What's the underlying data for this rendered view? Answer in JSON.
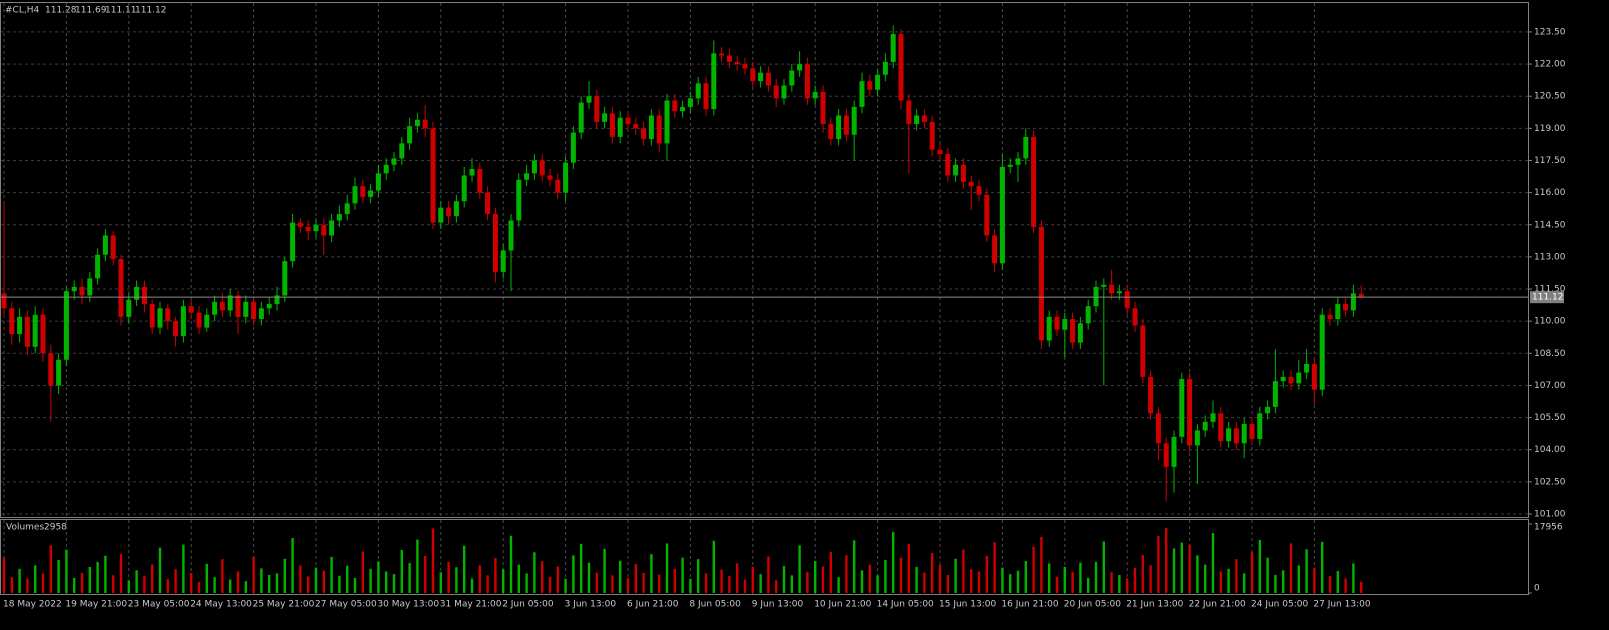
{
  "chart_data": {
    "type": "candlestick",
    "title": "#CL,H4",
    "volume_label": "Volumes",
    "up_color": "#00b400",
    "down_color": "#d00000",
    "grid": true,
    "categories": [
      "18 May 2022",
      null,
      null,
      null,
      null,
      null,
      null,
      null,
      "19 May 21:00",
      null,
      null,
      null,
      null,
      null,
      null,
      null,
      "23 May 05:00",
      null,
      null,
      null,
      null,
      null,
      null,
      null,
      "24 May 13:00",
      null,
      null,
      null,
      null,
      null,
      null,
      null,
      "25 May 21:00",
      null,
      null,
      null,
      null,
      null,
      null,
      null,
      "27 May 05:00",
      null,
      null,
      null,
      null,
      null,
      null,
      null,
      "30 May 13:00",
      null,
      null,
      null,
      null,
      null,
      null,
      null,
      "31 May 21:00",
      null,
      null,
      null,
      null,
      null,
      null,
      null,
      "2 Jun 05:00",
      null,
      null,
      null,
      null,
      null,
      null,
      null,
      "3 Jun 13:00",
      null,
      null,
      null,
      null,
      null,
      null,
      null,
      "6 Jun 21:00",
      null,
      null,
      null,
      null,
      null,
      null,
      null,
      "8 Jun 05:00",
      null,
      null,
      null,
      null,
      null,
      null,
      null,
      "9 Jun 13:00",
      null,
      null,
      null,
      null,
      null,
      null,
      null,
      "10 Jun 21:00",
      null,
      null,
      null,
      null,
      null,
      null,
      null,
      "14 Jun 05:00",
      null,
      null,
      null,
      null,
      null,
      null,
      null,
      "15 Jun 13:00",
      null,
      null,
      null,
      null,
      null,
      null,
      null,
      "16 Jun 21:00",
      null,
      null,
      null,
      null,
      null,
      null,
      null,
      "20 Jun 05:00",
      null,
      null,
      null,
      null,
      null,
      null,
      null,
      "21 Jun 13:00",
      null,
      null,
      null,
      null,
      null,
      null,
      null,
      "22 Jun 21:00",
      null,
      null,
      null,
      null,
      null,
      null,
      null,
      "24 Jun 05:00",
      null,
      null,
      null,
      null,
      null,
      null,
      null,
      "27 Jun 13:00",
      null,
      null,
      null,
      null,
      null,
      null
    ],
    "open": [
      111.3,
      110.6,
      109.4,
      110.2,
      108.8,
      110.3,
      108.5,
      107.0,
      108.2,
      111.4,
      111.6,
      111.2,
      112.0,
      113.1,
      114.0,
      112.9,
      110.2,
      111.0,
      111.6,
      110.8,
      109.7,
      110.6,
      110.0,
      109.3,
      110.7,
      110.4,
      109.7,
      110.3,
      110.9,
      110.5,
      111.2,
      110.2,
      110.9,
      110.1,
      110.6,
      110.8,
      111.2,
      112.8,
      114.6,
      114.4,
      114.2,
      114.5,
      114.0,
      114.7,
      115.0,
      115.5,
      116.3,
      115.8,
      116.1,
      116.9,
      117.3,
      117.6,
      118.3,
      119.1,
      119.4,
      119.0,
      114.6,
      115.3,
      114.9,
      115.6,
      116.8,
      117.1,
      116.0,
      115.0,
      112.3,
      113.3,
      114.7,
      116.6,
      116.9,
      117.5,
      116.8,
      116.6,
      116.0,
      117.4,
      118.8,
      120.2,
      120.5,
      119.3,
      119.7,
      118.6,
      119.5,
      119.2,
      119.0,
      118.5,
      119.6,
      118.3,
      120.3,
      119.8,
      120.0,
      120.4,
      121.1,
      119.9,
      122.5,
      122.4,
      122.1,
      122.0,
      121.8,
      121.2,
      121.6,
      121.0,
      120.4,
      121.0,
      121.7,
      122.0,
      120.4,
      120.7,
      119.2,
      118.5,
      119.6,
      118.7,
      120.0,
      121.2,
      120.8,
      121.5,
      122.1,
      123.4,
      120.3,
      119.2,
      119.6,
      119.3,
      118.0,
      117.8,
      116.8,
      117.3,
      116.5,
      116.3,
      115.9,
      114.0,
      112.7,
      117.2,
      117.3,
      117.6,
      118.6,
      114.4,
      109.1,
      110.2,
      109.6,
      110.1,
      109.0,
      109.9,
      110.7,
      111.6,
      111.7,
      111.3,
      111.4,
      110.6,
      109.8,
      107.4,
      105.7,
      104.3,
      103.2,
      104.6,
      107.3,
      104.2,
      104.9,
      105.3,
      105.7,
      104.4,
      105.0,
      104.3,
      105.2,
      104.5,
      105.7,
      106.0,
      107.2,
      107.4,
      107.1,
      107.6,
      108.0,
      106.8,
      110.3,
      110.1,
      110.8,
      110.5,
      111.28
    ],
    "high": [
      115.6,
      110.9,
      110.6,
      110.5,
      110.7,
      110.6,
      108.9,
      108.5,
      111.6,
      111.9,
      112.0,
      112.3,
      113.4,
      114.3,
      114.2,
      113.1,
      111.3,
      111.9,
      111.9,
      111.0,
      110.9,
      110.8,
      110.2,
      111.0,
      111.0,
      110.7,
      110.6,
      111.2,
      111.3,
      111.5,
      111.4,
      111.2,
      111.1,
      110.9,
      111.1,
      111.6,
      113.0,
      115.0,
      114.8,
      114.7,
      114.8,
      114.8,
      115.0,
      115.4,
      115.9,
      116.7,
      116.6,
      116.4,
      117.3,
      117.6,
      117.9,
      118.6,
      119.5,
      119.7,
      120.1,
      119.3,
      115.6,
      115.6,
      115.9,
      117.2,
      117.6,
      117.4,
      116.3,
      115.3,
      113.6,
      115.0,
      116.9,
      117.3,
      117.8,
      117.8,
      117.1,
      116.9,
      117.7,
      119.1,
      120.5,
      121.2,
      120.8,
      120.0,
      120.0,
      119.8,
      119.8,
      119.5,
      119.3,
      119.9,
      119.9,
      120.6,
      120.6,
      120.3,
      120.7,
      121.4,
      121.4,
      123.1,
      122.8,
      122.7,
      122.4,
      122.3,
      122.1,
      121.9,
      121.9,
      121.3,
      121.3,
      122.0,
      122.6,
      122.3,
      121.0,
      121.0,
      119.5,
      119.9,
      119.9,
      120.3,
      121.6,
      121.5,
      121.8,
      122.5,
      123.8,
      123.6,
      120.6,
      119.9,
      119.9,
      119.6,
      118.3,
      118.1,
      117.6,
      117.6,
      116.8,
      116.6,
      116.2,
      114.3,
      117.8,
      117.6,
      117.9,
      119.0,
      118.9,
      114.7,
      110.5,
      110.5,
      110.4,
      110.4,
      110.2,
      111.0,
      111.9,
      112.0,
      112.4,
      111.7,
      111.7,
      110.9,
      110.1,
      107.7,
      106.0,
      104.6,
      104.9,
      107.6,
      107.6,
      105.2,
      105.6,
      106.3,
      106.0,
      105.3,
      105.3,
      105.5,
      105.5,
      106.0,
      106.3,
      108.7,
      107.7,
      107.7,
      108.2,
      108.7,
      108.3,
      110.6,
      110.6,
      111.1,
      111.1,
      111.7,
      111.69
    ],
    "low": [
      110.2,
      108.9,
      109.0,
      108.4,
      108.5,
      108.1,
      105.3,
      106.6,
      107.9,
      111.0,
      110.8,
      110.9,
      111.7,
      112.8,
      112.6,
      109.8,
      109.9,
      110.7,
      110.4,
      109.4,
      109.4,
      109.6,
      108.8,
      109.0,
      110.1,
      109.4,
      109.5,
      110.0,
      110.2,
      110.2,
      109.4,
      109.9,
      109.8,
      109.8,
      110.3,
      110.5,
      110.9,
      112.5,
      114.1,
      113.8,
      113.9,
      113.1,
      113.7,
      114.4,
      114.7,
      115.2,
      115.5,
      115.5,
      115.8,
      116.6,
      117.0,
      117.3,
      118.0,
      118.8,
      118.6,
      114.3,
      114.3,
      114.5,
      114.6,
      115.3,
      116.5,
      115.7,
      114.7,
      111.8,
      112.0,
      111.4,
      114.4,
      116.3,
      116.6,
      116.5,
      116.3,
      115.7,
      115.6,
      117.1,
      118.5,
      119.9,
      119.0,
      119.0,
      118.3,
      118.3,
      118.9,
      118.7,
      118.2,
      118.2,
      117.9,
      117.5,
      119.5,
      119.5,
      119.7,
      120.1,
      119.6,
      119.6,
      122.1,
      121.8,
      121.7,
      121.5,
      120.9,
      120.9,
      120.7,
      120.0,
      120.1,
      120.7,
      121.4,
      120.1,
      120.1,
      118.8,
      118.2,
      118.2,
      118.4,
      117.5,
      119.7,
      120.5,
      120.5,
      121.2,
      121.8,
      119.9,
      116.9,
      118.9,
      119.0,
      117.7,
      117.5,
      116.5,
      116.5,
      116.2,
      115.2,
      115.6,
      113.7,
      112.3,
      112.4,
      116.9,
      116.5,
      117.3,
      114.1,
      108.7,
      108.8,
      109.3,
      108.3,
      108.7,
      108.7,
      109.6,
      110.4,
      107.0,
      111.0,
      111.0,
      110.3,
      109.5,
      107.1,
      105.4,
      103.5,
      101.6,
      102.0,
      104.3,
      103.9,
      102.4,
      104.6,
      105.0,
      104.1,
      104.1,
      104.0,
      103.6,
      104.2,
      104.2,
      105.4,
      105.7,
      106.9,
      106.8,
      106.8,
      107.3,
      106.1,
      106.5,
      109.8,
      109.8,
      110.2,
      110.2,
      111.11
    ],
    "close": [
      110.6,
      109.4,
      110.2,
      108.8,
      110.3,
      108.5,
      107.0,
      108.2,
      111.4,
      111.6,
      111.2,
      112.0,
      113.1,
      114.0,
      112.9,
      110.2,
      111.0,
      111.6,
      110.8,
      109.7,
      110.6,
      110.0,
      109.3,
      110.7,
      110.4,
      109.7,
      110.3,
      110.9,
      110.5,
      111.2,
      110.2,
      110.9,
      110.1,
      110.6,
      110.8,
      111.2,
      112.8,
      114.6,
      114.4,
      114.2,
      114.5,
      114.0,
      114.7,
      115.0,
      115.5,
      116.3,
      115.8,
      116.1,
      116.9,
      117.3,
      117.6,
      118.3,
      119.1,
      119.4,
      119.0,
      114.6,
      115.3,
      114.9,
      115.6,
      116.8,
      117.1,
      116.0,
      115.0,
      112.3,
      113.3,
      114.7,
      116.6,
      116.9,
      117.5,
      116.8,
      116.6,
      116.0,
      117.4,
      118.8,
      120.2,
      120.5,
      119.3,
      119.7,
      118.6,
      119.5,
      119.2,
      119.0,
      118.5,
      119.6,
      118.3,
      120.3,
      119.8,
      120.0,
      120.4,
      121.1,
      119.9,
      122.5,
      122.4,
      122.1,
      122.0,
      121.8,
      121.2,
      121.6,
      121.0,
      120.4,
      121.0,
      121.7,
      122.0,
      120.4,
      120.7,
      119.2,
      118.5,
      119.6,
      118.7,
      120.0,
      121.2,
      120.8,
      121.5,
      122.1,
      123.4,
      120.3,
      119.2,
      119.6,
      119.3,
      118.0,
      117.8,
      116.8,
      117.3,
      116.5,
      116.3,
      115.9,
      114.0,
      112.7,
      117.2,
      117.3,
      117.6,
      118.6,
      114.4,
      109.1,
      110.2,
      109.6,
      110.1,
      109.0,
      109.9,
      110.7,
      111.6,
      111.7,
      111.3,
      111.4,
      110.6,
      109.8,
      107.4,
      105.7,
      104.3,
      103.2,
      104.6,
      107.3,
      104.2,
      104.9,
      105.3,
      105.7,
      104.4,
      105.0,
      104.3,
      105.2,
      104.5,
      105.7,
      106.0,
      107.2,
      107.4,
      107.1,
      107.6,
      108.0,
      106.8,
      110.3,
      110.1,
      110.8,
      110.5,
      111.3,
      111.12
    ],
    "volume": [
      9200,
      4100,
      6300,
      3800,
      7200,
      5100,
      12400,
      8600,
      11300,
      3900,
      5200,
      6800,
      8100,
      9700,
      4600,
      10200,
      3300,
      5900,
      4400,
      7400,
      11800,
      3600,
      6200,
      12600,
      5200,
      2900,
      7600,
      4100,
      8800,
      3500,
      5600,
      3100,
      9300,
      6400,
      4700,
      5100,
      8900,
      14300,
      7200,
      4300,
      6600,
      5800,
      9400,
      4500,
      7100,
      3900,
      10800,
      6300,
      8200,
      5600,
      4900,
      11200,
      7800,
      13900,
      9600,
      16800,
      5400,
      8100,
      6700,
      12300,
      3800,
      7200,
      4600,
      9100,
      6200,
      14900,
      7400,
      5100,
      10600,
      8300,
      4200,
      6900,
      3700,
      9800,
      12800,
      7900,
      5300,
      11500,
      4600,
      8400,
      3900,
      7600,
      5200,
      10100,
      4800,
      12900,
      6300,
      9200,
      3700,
      8800,
      5100,
      13600,
      6100,
      4400,
      7700,
      3500,
      6800,
      4900,
      9500,
      3300,
      7100,
      4600,
      12400,
      5500,
      8300,
      6900,
      10700,
      4100,
      9800,
      13700,
      5900,
      7400,
      4600,
      8600,
      15900,
      9200,
      12700,
      6800,
      5300,
      10400,
      7300,
      4700,
      8900,
      11300,
      6200,
      5600,
      9700,
      13200,
      6600,
      4900,
      5800,
      8300,
      12100,
      14600,
      7700,
      4200,
      6800,
      5500,
      7900,
      3900,
      8100,
      13400,
      5400,
      4700,
      3800,
      6500,
      9900,
      7200,
      14800,
      16900,
      11600,
      13100,
      12500,
      9800,
      7400,
      15600,
      5600,
      6300,
      8800,
      5100,
      10600,
      13800,
      9200,
      4700,
      5900,
      12900,
      7200,
      11400,
      6600,
      13300,
      4400,
      5700,
      3800,
      7700,
      2958
    ],
    "ylim": [
      100.86,
      124.99
    ],
    "yticks": [
      {
        "value": 101,
        "label": "101.00"
      },
      {
        "value": 102.5,
        "label": "102.50"
      },
      {
        "value": 104,
        "label": "104.00"
      },
      {
        "value": 105.5,
        "label": "105.50"
      },
      {
        "value": 107,
        "label": "107.00"
      },
      {
        "value": 108.5,
        "label": "108.50"
      },
      {
        "value": 110,
        "label": "110.00"
      },
      {
        "value": 111.5,
        "label": "111.50"
      },
      {
        "value": 113,
        "label": "113.00"
      },
      {
        "value": 114.5,
        "label": "114.50"
      },
      {
        "value": 116,
        "label": "116.00"
      },
      {
        "value": 117.5,
        "label": "117.50"
      },
      {
        "value": 119,
        "label": "119.00"
      },
      {
        "value": 120.5,
        "label": "120.50"
      },
      {
        "value": 122,
        "label": "122.00"
      },
      {
        "value": 123.5,
        "label": "123.50"
      }
    ],
    "y2lim": [
      0,
      17956
    ],
    "y2ticks": [
      0,
      17956
    ]
  }
}
